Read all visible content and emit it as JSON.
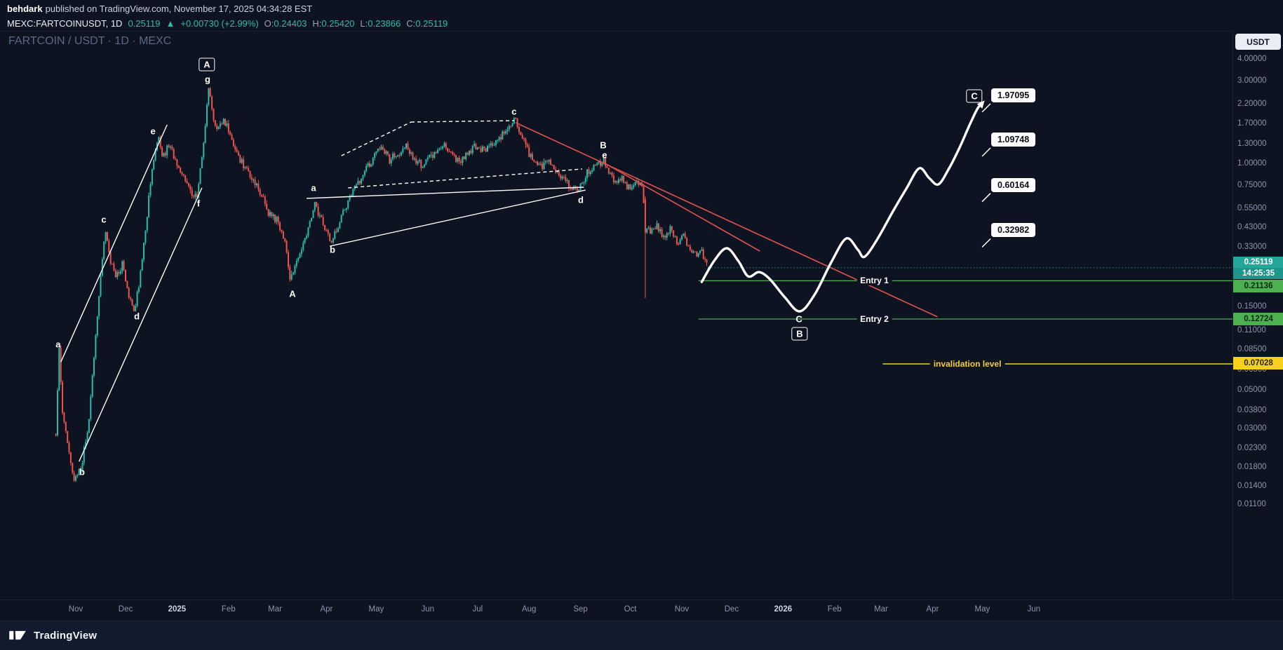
{
  "header": {
    "author": "behdark",
    "published_suffix": " published on TradingView.com, November 17, 2025 04:34:28 EST"
  },
  "symbol_bar": {
    "symbol": "MEXC:FARTCOINUSDT, 1D",
    "price": "0.25119",
    "arrow": "▲",
    "change": "+0.00730 (+2.99%)",
    "ohlc": [
      {
        "label": "O:",
        "value": "0.24403"
      },
      {
        "label": "H:",
        "value": "0.25420"
      },
      {
        "label": "L:",
        "value": "0.23866"
      },
      {
        "label": "C:",
        "value": "0.25119"
      }
    ]
  },
  "chart_title": "FARTCOIN / USDT · 1D · MEXC",
  "axis": {
    "currency_button": "USDT",
    "price_ticks": [
      {
        "text": "4.00000",
        "v": 4.0
      },
      {
        "text": "3.00000",
        "v": 3.0
      },
      {
        "text": "2.20000",
        "v": 2.2
      },
      {
        "text": "1.70000",
        "v": 1.7
      },
      {
        "text": "1.30000",
        "v": 1.3
      },
      {
        "text": "1.00000",
        "v": 1.0
      },
      {
        "text": "0.75000",
        "v": 0.75
      },
      {
        "text": "0.55000",
        "v": 0.55
      },
      {
        "text": "0.43000",
        "v": 0.43
      },
      {
        "text": "0.33000",
        "v": 0.33
      },
      {
        "text": "0.15000",
        "v": 0.15
      },
      {
        "text": "0.11000",
        "v": 0.11
      },
      {
        "text": "0.08500",
        "v": 0.085
      },
      {
        "text": "0.06500",
        "v": 0.065
      },
      {
        "text": "0.05000",
        "v": 0.05
      },
      {
        "text": "0.03800",
        "v": 0.038
      },
      {
        "text": "0.03000",
        "v": 0.03
      },
      {
        "text": "0.02300",
        "v": 0.023
      },
      {
        "text": "0.01800",
        "v": 0.018
      },
      {
        "text": "0.01400",
        "v": 0.014
      },
      {
        "text": "0.01100",
        "v": 0.011
      }
    ],
    "time_ticks": [
      {
        "text": "Nov",
        "d": 0
      },
      {
        "text": "Dec",
        "d": 30
      },
      {
        "text": "2025",
        "d": 61,
        "strong": true
      },
      {
        "text": "Feb",
        "d": 92
      },
      {
        "text": "Mar",
        "d": 120
      },
      {
        "text": "Apr",
        "d": 151
      },
      {
        "text": "May",
        "d": 181
      },
      {
        "text": "Jun",
        "d": 212
      },
      {
        "text": "Jul",
        "d": 242
      },
      {
        "text": "Aug",
        "d": 273
      },
      {
        "text": "Sep",
        "d": 304
      },
      {
        "text": "Oct",
        "d": 334
      },
      {
        "text": "Nov",
        "d": 365
      },
      {
        "text": "Dec",
        "d": 395
      },
      {
        "text": "2026",
        "d": 426,
        "strong": true
      },
      {
        "text": "Feb",
        "d": 457
      },
      {
        "text": "Mar",
        "d": 485
      },
      {
        "text": "Apr",
        "d": 516
      },
      {
        "text": "May",
        "d": 546
      },
      {
        "text": "Jun",
        "d": 577
      }
    ]
  },
  "tags": {
    "current": {
      "text": "0.25119",
      "countdown": "14:25:35",
      "value": 0.25119
    },
    "entry1": {
      "text": "0.21136",
      "value": 0.21136
    },
    "entry2": {
      "text": "0.12724",
      "value": 0.12724
    },
    "invalidation": {
      "text": "0.07028",
      "value": 0.07028
    }
  },
  "targets": [
    {
      "text": "1.97095",
      "value": 1.97095
    },
    {
      "text": "1.09748",
      "value": 1.09748
    },
    {
      "text": "0.60164",
      "value": 0.60164
    },
    {
      "text": "0.32982",
      "value": 0.32982
    }
  ],
  "footer": {
    "brand": "TradingView"
  },
  "colors": {
    "up": "#2abbab",
    "down": "#f0534f",
    "entry": "#4caf50",
    "invalidation": "#f5d020",
    "trend_red": "#d9504e",
    "projection": "#ffffff",
    "current_tag": "#26a69a"
  },
  "chart_data": {
    "type": "candlestick",
    "symbol": "FARTCOIN/USDT",
    "exchange": "MEXC",
    "timeframe": "1D",
    "price_scale": "log",
    "visible_price_range": [
      0.011,
      4.0
    ],
    "x_unit": "days_since_2024-11-01",
    "visible_time_range": [
      "2024-10-20",
      "2026-06-30"
    ],
    "current_bar": {
      "open": 0.24403,
      "high": 0.2542,
      "low": 0.23866,
      "close": 0.25119,
      "change": 0.0073,
      "change_pct": 2.99
    },
    "price_path": [
      [
        -12,
        0.028
      ],
      [
        -10,
        0.085
      ],
      [
        -8,
        0.036
      ],
      [
        -4,
        0.022
      ],
      [
        -1,
        0.0145
      ],
      [
        4,
        0.019
      ],
      [
        8,
        0.035
      ],
      [
        12,
        0.1
      ],
      [
        15,
        0.24
      ],
      [
        18,
        0.42
      ],
      [
        20,
        0.3
      ],
      [
        24,
        0.22
      ],
      [
        28,
        0.26
      ],
      [
        32,
        0.17
      ],
      [
        35,
        0.14
      ],
      [
        38,
        0.2
      ],
      [
        42,
        0.42
      ],
      [
        45,
        0.8
      ],
      [
        48,
        1.2
      ],
      [
        50,
        1.42
      ],
      [
        52,
        1.08
      ],
      [
        56,
        1.26
      ],
      [
        60,
        1.04
      ],
      [
        65,
        0.85
      ],
      [
        70,
        0.66
      ],
      [
        73,
        0.64
      ],
      [
        75,
        0.9
      ],
      [
        78,
        1.7
      ],
      [
        80,
        2.68
      ],
      [
        82,
        2.0
      ],
      [
        85,
        1.52
      ],
      [
        89,
        1.8
      ],
      [
        93,
        1.45
      ],
      [
        98,
        1.1
      ],
      [
        104,
        0.88
      ],
      [
        110,
        0.72
      ],
      [
        116,
        0.52
      ],
      [
        121,
        0.47
      ],
      [
        126,
        0.36
      ],
      [
        129,
        0.21
      ],
      [
        133,
        0.27
      ],
      [
        138,
        0.36
      ],
      [
        144,
        0.58
      ],
      [
        149,
        0.46
      ],
      [
        154,
        0.35
      ],
      [
        158,
        0.44
      ],
      [
        163,
        0.58
      ],
      [
        168,
        0.72
      ],
      [
        174,
        0.9
      ],
      [
        180,
        1.1
      ],
      [
        184,
        1.22
      ],
      [
        189,
        1.05
      ],
      [
        194,
        1.15
      ],
      [
        199,
        1.28
      ],
      [
        203,
        1.08
      ],
      [
        208,
        0.96
      ],
      [
        212,
        1.06
      ],
      [
        217,
        1.18
      ],
      [
        222,
        1.3
      ],
      [
        226,
        1.12
      ],
      [
        231,
        1.02
      ],
      [
        236,
        1.15
      ],
      [
        241,
        1.25
      ],
      [
        246,
        1.18
      ],
      [
        251,
        1.3
      ],
      [
        256,
        1.45
      ],
      [
        260,
        1.6
      ],
      [
        265,
        1.82
      ],
      [
        267,
        1.55
      ],
      [
        271,
        1.25
      ],
      [
        275,
        1.05
      ],
      [
        280,
        0.95
      ],
      [
        285,
        1.02
      ],
      [
        290,
        0.88
      ],
      [
        295,
        0.8
      ],
      [
        299,
        0.72
      ],
      [
        302,
        0.7
      ],
      [
        306,
        0.82
      ],
      [
        310,
        0.92
      ],
      [
        314,
        1.0
      ],
      [
        318,
        1.03
      ],
      [
        321,
        0.88
      ],
      [
        325,
        0.78
      ],
      [
        329,
        0.82
      ],
      [
        333,
        0.72
      ],
      [
        337,
        0.76
      ],
      [
        341,
        0.74
      ],
      [
        343,
        0.45
      ],
      [
        346,
        0.4
      ],
      [
        350,
        0.44
      ],
      [
        354,
        0.37
      ],
      [
        358,
        0.42
      ],
      [
        362,
        0.35
      ],
      [
        366,
        0.38
      ],
      [
        370,
        0.32
      ],
      [
        374,
        0.3
      ],
      [
        377,
        0.33
      ],
      [
        379,
        0.27
      ],
      [
        381,
        0.2512
      ]
    ],
    "bar_overrides": [
      {
        "d": 343,
        "open": 0.62,
        "high": 0.65,
        "low": 0.168,
        "close": 0.4
      },
      {
        "d": 381,
        "open": 0.24403,
        "high": 0.2542,
        "low": 0.23866,
        "close": 0.25119
      }
    ],
    "projection_path": [
      [
        377,
        0.208
      ],
      [
        384.5,
        0.275
      ],
      [
        392,
        0.325
      ],
      [
        399,
        0.275
      ],
      [
        405,
        0.224
      ],
      [
        411.5,
        0.237
      ],
      [
        418,
        0.216
      ],
      [
        427,
        0.17
      ],
      [
        436,
        0.141
      ],
      [
        445,
        0.176
      ],
      [
        455,
        0.27
      ],
      [
        464,
        0.37
      ],
      [
        471,
        0.319
      ],
      [
        475,
        0.29
      ],
      [
        482.5,
        0.363
      ],
      [
        492,
        0.527
      ],
      [
        500.5,
        0.723
      ],
      [
        508,
        0.937
      ],
      [
        514,
        0.823
      ],
      [
        519.5,
        0.757
      ],
      [
        525.5,
        0.92
      ],
      [
        532,
        1.215
      ],
      [
        538,
        1.636
      ],
      [
        543,
        2.06
      ],
      [
        546,
        2.22
      ]
    ],
    "trendlines": [
      {
        "name": "left-channel-upper",
        "from": [
          -9,
          0.072
        ],
        "to": [
          55,
          1.667
        ],
        "color": "white",
        "dash": false
      },
      {
        "name": "left-channel-lower",
        "from": [
          2,
          0.0193
        ],
        "to": [
          76,
          0.723
        ],
        "color": "white",
        "dash": false
      },
      {
        "name": "mid-base-line",
        "from": [
          139,
          0.629
        ],
        "to": [
          306,
          0.729
        ],
        "color": "white",
        "dash": false
      },
      {
        "name": "mid-rising-line",
        "from": [
          153,
          0.334
        ],
        "to": [
          307,
          0.702
        ],
        "color": "white",
        "dash": false
      },
      {
        "name": "wedge-upper-1",
        "from": [
          160,
          1.107
        ],
        "to": [
          202,
          1.729
        ],
        "color": "white",
        "dash": true
      },
      {
        "name": "wedge-upper-2",
        "from": [
          202,
          1.729
        ],
        "to": [
          264,
          1.761
        ],
        "color": "white",
        "dash": true
      },
      {
        "name": "wedge-lower",
        "from": [
          164,
          0.723
        ],
        "to": [
          305,
          0.928
        ],
        "color": "white",
        "dash": true
      },
      {
        "name": "red-resistance-long",
        "from": [
          265,
          1.714
        ],
        "to": [
          519,
          0.131
        ],
        "color": "red",
        "dash": false
      },
      {
        "name": "red-resistance-short",
        "from": [
          318,
          1.009
        ],
        "to": [
          412,
          0.313
        ],
        "color": "red",
        "dash": false
      }
    ],
    "levels": [
      {
        "name": "entry1",
        "price": 0.21136,
        "from_d": 375,
        "label": "Entry 1",
        "label_d": 481,
        "color": "entry"
      },
      {
        "name": "entry2",
        "price": 0.12724,
        "from_d": 375,
        "label": "Entry 2",
        "label_d": 481,
        "color": "entry"
      },
      {
        "name": "invalidation",
        "price": 0.07028,
        "from_d": 486,
        "label": "invalidation level",
        "label_d": 537,
        "color": "invalidation"
      }
    ],
    "wave_labels": [
      {
        "text": "a",
        "d": -10.6,
        "p": 0.0911
      },
      {
        "text": "b",
        "d": 3.8,
        "p": 0.0168
      },
      {
        "text": "c",
        "d": 16.9,
        "p": 0.476
      },
      {
        "text": "d",
        "d": 36.8,
        "p": 0.1316
      },
      {
        "text": "e",
        "d": 46.5,
        "p": 1.533
      },
      {
        "text": "f",
        "d": 73.9,
        "p": 0.588
      },
      {
        "text": "g",
        "d": 79.4,
        "p": 3.05
      },
      {
        "text": "A",
        "d": 130.5,
        "p": 0.178
      },
      {
        "text": "a",
        "d": 143.2,
        "p": 0.723
      },
      {
        "text": "b",
        "d": 154.6,
        "p": 0.319
      },
      {
        "text": "c",
        "d": 264.0,
        "p": 1.988
      },
      {
        "text": "d",
        "d": 304.2,
        "p": 0.617
      },
      {
        "text": "e",
        "d": 318.5,
        "p": 1.118
      },
      {
        "text": "B",
        "d": 317.7,
        "p": 1.273
      },
      {
        "text": "C",
        "d": 435.6,
        "p": 0.127
      }
    ],
    "boxed_labels": [
      {
        "text": "A",
        "d": 79.0,
        "p": 3.7
      },
      {
        "text": "B",
        "d": 436.0,
        "p": 0.105
      },
      {
        "text": "C",
        "d": 541.2,
        "p": 2.44
      }
    ]
  }
}
